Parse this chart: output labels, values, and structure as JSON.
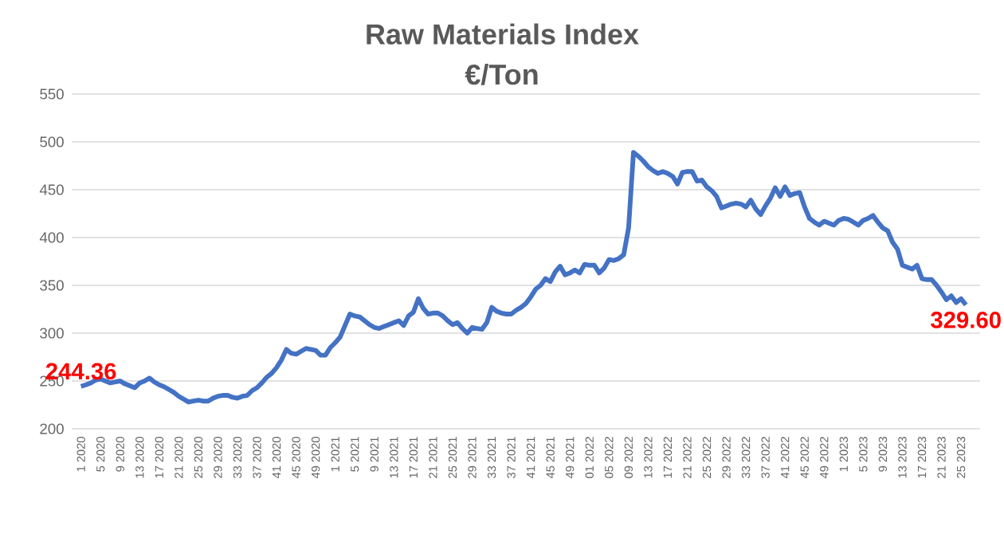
{
  "chart_data": {
    "type": "line",
    "title": "Raw Materials Index",
    "subtitle": "€/Ton",
    "categories": [
      "1 2020",
      null,
      null,
      null,
      "5 2020",
      null,
      null,
      null,
      "9 2020",
      null,
      null,
      null,
      "13 2020",
      null,
      null,
      null,
      "17 2020",
      null,
      null,
      null,
      "21 2020",
      null,
      null,
      null,
      "25 2020",
      null,
      null,
      null,
      "29 2020",
      null,
      null,
      null,
      "33 2020",
      null,
      null,
      null,
      "37 2020",
      null,
      null,
      null,
      "41 2020",
      null,
      null,
      null,
      "45 2020",
      null,
      null,
      null,
      "49 2020",
      null,
      null,
      null,
      "1 2021",
      null,
      null,
      null,
      "5 2021",
      null,
      null,
      null,
      "9 2021",
      null,
      null,
      null,
      "13 2021",
      null,
      null,
      null,
      "17 2021",
      null,
      null,
      null,
      "21 2021",
      null,
      null,
      null,
      "25 2021",
      null,
      null,
      null,
      "29 2021",
      null,
      null,
      null,
      "33 2021",
      null,
      null,
      null,
      "37 2021",
      null,
      null,
      null,
      "41 2021",
      null,
      null,
      null,
      "45 2021",
      null,
      null,
      null,
      "49 2021",
      null,
      null,
      null,
      "01 2022",
      null,
      null,
      null,
      "05 2022",
      null,
      null,
      null,
      "09 2022",
      null,
      null,
      null,
      "13 2022",
      null,
      null,
      null,
      "17 2022",
      null,
      null,
      null,
      "21 2022",
      null,
      null,
      null,
      "25 2022",
      null,
      null,
      null,
      "29 2022",
      null,
      null,
      null,
      "33 2022",
      null,
      null,
      null,
      "37 2022",
      null,
      null,
      null,
      "41 2022",
      null,
      null,
      null,
      "45 2022",
      null,
      null,
      null,
      "49 2022",
      null,
      null,
      null,
      "1 2023",
      null,
      null,
      null,
      "5 2023",
      null,
      null,
      null,
      "9 2023",
      null,
      null,
      null,
      "13 2023",
      null,
      null,
      null,
      "17 2023",
      null,
      null,
      null,
      "21 2023",
      null,
      null,
      null,
      "25 2023",
      null
    ],
    "series": [
      {
        "color": "#4472c4",
        "values": [
          244.36,
          246,
          248,
          251,
          252,
          250,
          248,
          249,
          250,
          247,
          245,
          243,
          248,
          250,
          253,
          249,
          246,
          244,
          241,
          238,
          234,
          231,
          228,
          229,
          230,
          229,
          229,
          232,
          234,
          235,
          235,
          233,
          232,
          234,
          235,
          240,
          243,
          248,
          254,
          258,
          264,
          272,
          283,
          279,
          278,
          281,
          284,
          283,
          282,
          277,
          277,
          285,
          290,
          296,
          308,
          320,
          318,
          317,
          313,
          309,
          306,
          305,
          307,
          309,
          311,
          313,
          308,
          318,
          322,
          336,
          326,
          320,
          321,
          321,
          318,
          313,
          309,
          311,
          305,
          300,
          306,
          305,
          304,
          311,
          327,
          323,
          321,
          320,
          320,
          324,
          327,
          331,
          338,
          346,
          350,
          357,
          354,
          364,
          370,
          361,
          363,
          366,
          363,
          372,
          371,
          371,
          363,
          368,
          377,
          376,
          378,
          382,
          410,
          489,
          485,
          480,
          474,
          470,
          467,
          469,
          467,
          464,
          456,
          468,
          469,
          469,
          459,
          460,
          453,
          449,
          443,
          431,
          433,
          435,
          436,
          435,
          432,
          439,
          430,
          424,
          433,
          441,
          452,
          443,
          453,
          444,
          446,
          447,
          432,
          420,
          416,
          413,
          417,
          415,
          413,
          418,
          420,
          419,
          416,
          413,
          418,
          420,
          423,
          416,
          410,
          407,
          395,
          388,
          371,
          369,
          367,
          371,
          357,
          356,
          356,
          350,
          343,
          335,
          339,
          332,
          336,
          329.6
        ],
        "value_labels": [
          "244.36",
          null,
          null,
          null,
          null,
          null,
          null,
          null,
          null,
          null,
          null,
          null,
          null,
          null,
          null,
          null,
          null,
          null,
          null,
          null,
          null,
          null,
          null,
          null,
          null,
          null,
          null,
          null,
          null,
          null,
          null,
          null,
          null,
          null,
          null,
          null,
          null,
          null,
          null,
          null,
          null,
          null,
          null,
          null,
          null,
          null,
          null,
          null,
          null,
          null,
          null,
          null,
          null,
          null,
          null,
          null,
          null,
          null,
          null,
          null,
          null,
          null,
          null,
          null,
          null,
          null,
          null,
          null,
          null,
          null,
          null,
          null,
          null,
          null,
          null,
          null,
          null,
          null,
          null,
          null,
          null,
          null,
          null,
          null,
          null,
          null,
          null,
          null,
          null,
          null,
          null,
          null,
          null,
          null,
          null,
          null,
          null,
          null,
          null,
          null,
          null,
          null,
          null,
          null,
          null,
          null,
          null,
          null,
          null,
          null,
          null,
          null,
          null,
          null,
          null,
          null,
          null,
          null,
          null,
          null,
          null,
          null,
          null,
          null,
          null,
          null,
          null,
          null,
          null,
          null,
          null,
          null,
          null,
          null,
          null,
          null,
          null,
          null,
          null,
          null,
          null,
          null,
          null,
          null,
          null,
          null,
          null,
          null,
          null,
          null,
          null,
          null,
          null,
          null,
          null,
          null,
          null,
          null,
          null,
          null,
          null,
          null,
          null,
          null,
          null,
          null,
          null,
          null,
          null,
          null,
          null,
          null,
          null,
          null,
          null,
          null,
          null,
          null,
          null,
          null,
          null,
          "329.60"
        ]
      }
    ],
    "ylim": [
      200,
      550
    ],
    "yticks": [
      200,
      250,
      300,
      350,
      400,
      450,
      500,
      550
    ],
    "grid": "y"
  }
}
